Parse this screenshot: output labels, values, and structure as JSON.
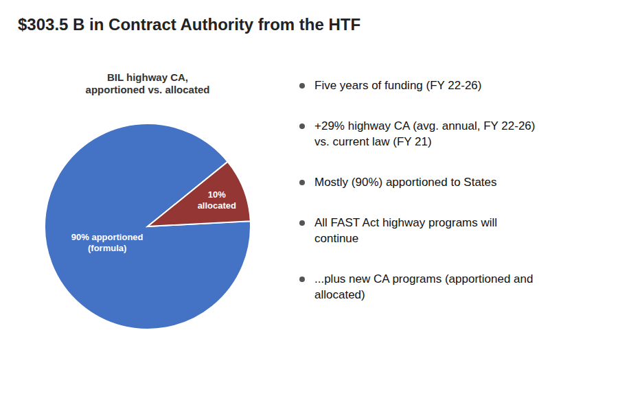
{
  "chart_data": {
    "type": "pie",
    "title": "$303.5 B in Contract Authority from the HTF",
    "subtitle": "BIL highway CA,\napportioned vs. allocated",
    "values": [
      90,
      10
    ],
    "value_labels": [
      "90% apportioned\n(formula)",
      "10%\nallocated"
    ],
    "data_labels": true,
    "colors": [
      "#4472c4",
      "#943634"
    ],
    "annotations": [
      "Five years of funding (FY 22-26)",
      "+29% highway CA (avg. annual, FY 22-26)\nvs. current law (FY 21)",
      "Mostly (90%) apportioned to States",
      "All FAST Act highway programs will\ncontinue",
      "...plus new CA programs (apportioned and\nallocated)"
    ]
  }
}
